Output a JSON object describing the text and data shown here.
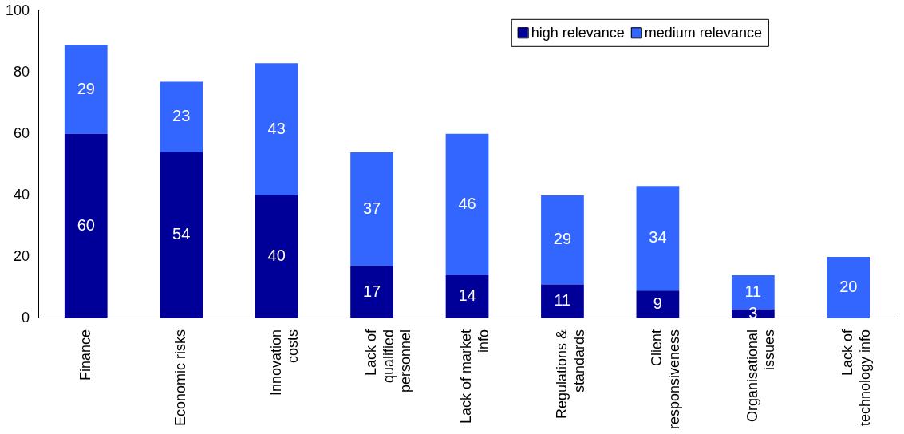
{
  "chart_data": {
    "type": "bar",
    "stacked": true,
    "categories": [
      "Finance",
      "Economic risks",
      "Innovation costs",
      "Lack of qualified personnel",
      "Lack of market info",
      "Regulations & standards",
      "Client responsiveness",
      "Organisational issues",
      "Lack of technology info"
    ],
    "series": [
      {
        "name": "high relevance",
        "color": "#000099",
        "values": [
          60,
          54,
          40,
          17,
          14,
          11,
          9,
          3,
          null
        ]
      },
      {
        "name": "medium relevance",
        "color": "#3366ff",
        "values": [
          29,
          23,
          43,
          37,
          46,
          29,
          34,
          11,
          20
        ]
      }
    ],
    "ylim": [
      0,
      100
    ],
    "yticks": [
      0,
      20,
      40,
      60,
      80,
      100
    ],
    "grid": false,
    "legend": "top",
    "data_labels": true
  }
}
